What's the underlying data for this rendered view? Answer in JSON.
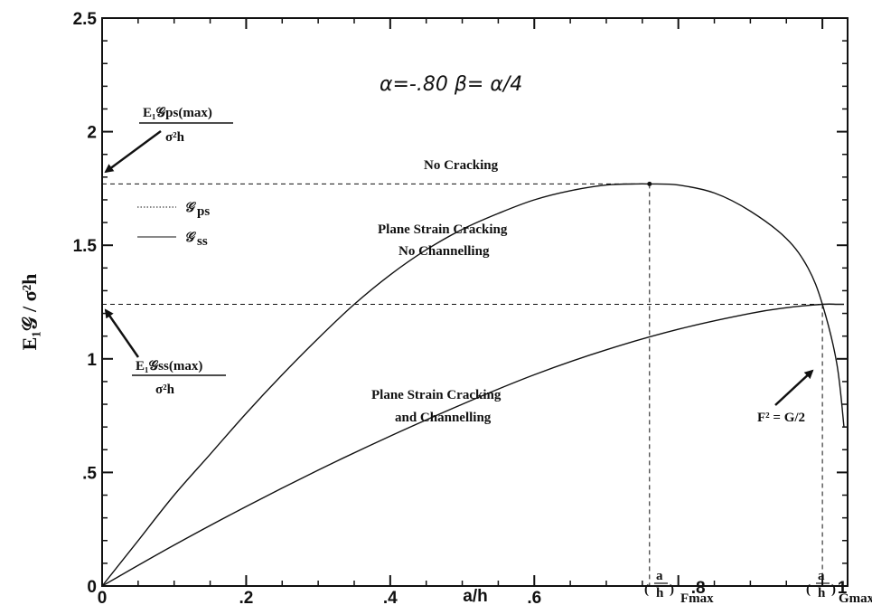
{
  "chart_data": {
    "type": "line",
    "title": "α=-.80  β= α/4",
    "xlabel": "a/h",
    "ylabel": "E₁𝒢 / σ²h",
    "xlim": [
      0,
      1.035
    ],
    "ylim": [
      0,
      2.5
    ],
    "x_ticks": [
      {
        "value": 0,
        "label": "0"
      },
      {
        "value": 0.2,
        "label": ".2"
      },
      {
        "value": 0.4,
        "label": ".4"
      },
      {
        "value": 0.6,
        "label": ".6"
      },
      {
        "value": 0.8,
        "label": ".8"
      },
      {
        "value": 1.0,
        "label": "1"
      }
    ],
    "y_ticks": [
      {
        "value": 0,
        "label": "0"
      },
      {
        "value": 0.5,
        "label": ".5"
      },
      {
        "value": 1.0,
        "label": "1"
      },
      {
        "value": 1.5,
        "label": "1.5"
      },
      {
        "value": 2.0,
        "label": "2"
      },
      {
        "value": 2.5,
        "label": "2.5"
      }
    ],
    "grid": false,
    "legend": [
      {
        "symbol": "𝒢",
        "subscript": "ps",
        "style": "dotted"
      },
      {
        "symbol": "𝒢",
        "subscript": "ss",
        "style": "solid"
      }
    ],
    "series": [
      {
        "style": "solid",
        "x": [
          0,
          0.05,
          0.1,
          0.15,
          0.2,
          0.25,
          0.3,
          0.35,
          0.4,
          0.45,
          0.5,
          0.55,
          0.6,
          0.65,
          0.7,
          0.74,
          0.76,
          0.8,
          0.85,
          0.9,
          0.95,
          0.98,
          1.0,
          1.02,
          1.03
        ],
        "y": [
          0,
          0.2,
          0.4,
          0.58,
          0.76,
          0.93,
          1.09,
          1.24,
          1.37,
          1.48,
          1.57,
          1.64,
          1.7,
          1.74,
          1.765,
          1.77,
          1.77,
          1.765,
          1.73,
          1.65,
          1.53,
          1.4,
          1.24,
          0.98,
          0.7
        ]
      },
      {
        "style": "solid",
        "x": [
          0,
          0.1,
          0.2,
          0.3,
          0.4,
          0.5,
          0.6,
          0.7,
          0.8,
          0.9,
          0.95,
          1.0,
          1.02,
          1.03
        ],
        "y": [
          0,
          0.18,
          0.35,
          0.51,
          0.66,
          0.8,
          0.93,
          1.04,
          1.13,
          1.2,
          1.225,
          1.24,
          1.24,
          1.24
        ]
      }
    ],
    "reference_lines": {
      "ps_max_y": 1.77,
      "ss_max_y": 1.24,
      "f_max_x": 0.76,
      "g_max_x": 1.0
    },
    "annotations": {
      "no_cracking": "No Cracking",
      "plane_strain_1": "Plane Strain Cracking",
      "plane_strain_2": "No Channelling",
      "and_channel_1": "Plane Strain Cracking",
      "and_channel_2": "and Channelling",
      "f2_eq": "F² = G/2",
      "ps_max_num": "E₁𝒢ps(max)",
      "ps_max_den": "σ²h",
      "ss_max_num": "E₁𝒢ss(max)",
      "ss_max_den": "σ²h",
      "a_over_h_a": "a",
      "a_over_h_h": "h",
      "f_max_sub": "Fmax",
      "g_max_sub": "Gmax"
    }
  }
}
